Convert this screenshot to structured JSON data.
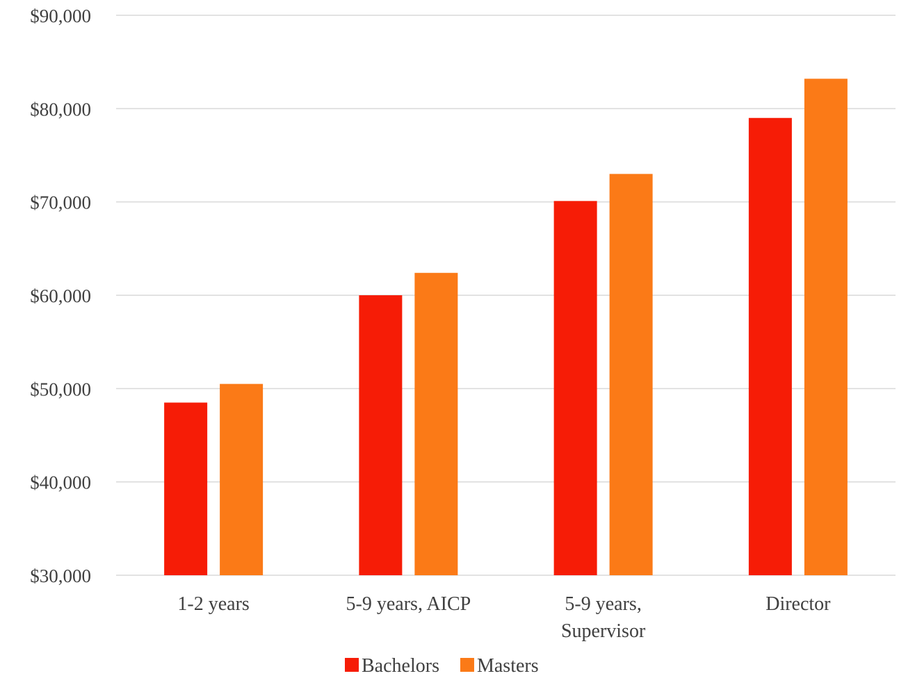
{
  "chart_data": {
    "type": "bar",
    "categories": [
      [
        "1-2 years"
      ],
      [
        "5-9 years, AICP"
      ],
      [
        "5-9 years,",
        "Supervisor"
      ],
      [
        "Director"
      ]
    ],
    "series": [
      {
        "name": "Bachelors",
        "color": "#f61c06",
        "values": [
          48500,
          60000,
          70100,
          79000
        ]
      },
      {
        "name": "Masters",
        "color": "#fb7a17",
        "values": [
          50500,
          62400,
          73000,
          83200
        ]
      }
    ],
    "yticks": [
      "$30,000",
      "$40,000",
      "$50,000",
      "$60,000",
      "$70,000",
      "$80,000",
      "$90,000"
    ],
    "ylim": [
      30000,
      90000
    ],
    "ytick_step": 10000,
    "grid": true,
    "gridline_color": "#d9d9d9",
    "legend_position": "bottom",
    "title": "",
    "xlabel": "",
    "ylabel": ""
  }
}
